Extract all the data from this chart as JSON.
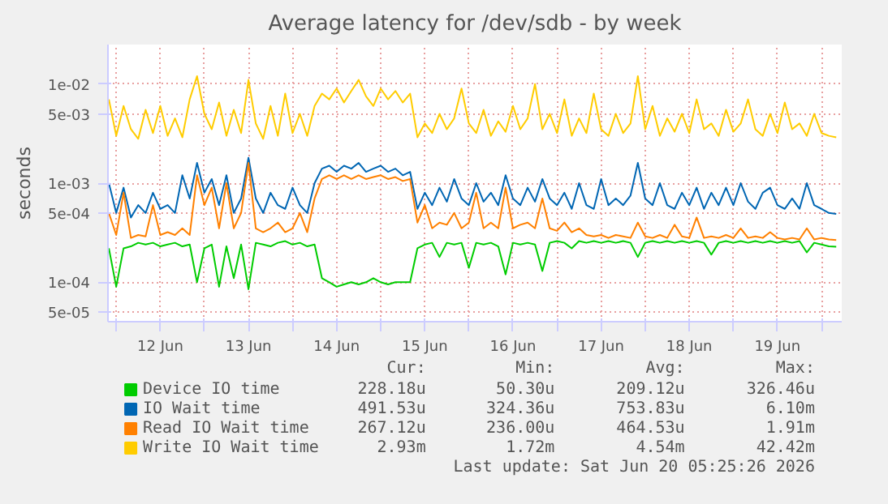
{
  "chart_data": {
    "type": "line",
    "title": "Average latency for /dev/sdb - by week",
    "ylabel": "seconds",
    "log": "y",
    "grid": true,
    "legend": "bottom",
    "marker": "none",
    "line_style": "solid",
    "xlim": [
      "2026-06-11T21:45",
      "2026-06-20T05:30"
    ],
    "xticks": [
      {
        "value": "2026-06-12T00:00",
        "label": null
      },
      {
        "value": "2026-06-12T12:00",
        "label": "12 Jun"
      },
      {
        "value": "2026-06-13T00:00",
        "label": null
      },
      {
        "value": "2026-06-13T12:00",
        "label": "13 Jun"
      },
      {
        "value": "2026-06-14T00:00",
        "label": null
      },
      {
        "value": "2026-06-14T12:00",
        "label": "14 Jun"
      },
      {
        "value": "2026-06-15T00:00",
        "label": null
      },
      {
        "value": "2026-06-15T12:00",
        "label": "15 Jun"
      },
      {
        "value": "2026-06-16T00:00",
        "label": null
      },
      {
        "value": "2026-06-16T12:00",
        "label": "16 Jun"
      },
      {
        "value": "2026-06-17T00:00",
        "label": null
      },
      {
        "value": "2026-06-17T12:00",
        "label": "17 Jun"
      },
      {
        "value": "2026-06-18T00:00",
        "label": null
      },
      {
        "value": "2026-06-18T12:00",
        "label": "18 Jun"
      },
      {
        "value": "2026-06-19T00:00",
        "label": null
      },
      {
        "value": "2026-06-19T12:00",
        "label": "19 Jun"
      },
      {
        "value": "2026-06-20T00:00",
        "label": null
      }
    ],
    "ylim": [
      4e-05,
      0.025
    ],
    "yticks": [
      {
        "value": 5e-05,
        "label": "5e-05"
      },
      {
        "value": 0.0001,
        "label": "1e-04"
      },
      {
        "value": 0.0005,
        "label": "5e-04"
      },
      {
        "value": 0.001,
        "label": "1e-03"
      },
      {
        "value": 0.005,
        "label": "5e-03"
      },
      {
        "value": 0.01,
        "label": "1e-02"
      }
    ],
    "x": [
      "2026-06-11T22:00",
      "2026-06-12T00:00",
      "2026-06-12T02:00",
      "2026-06-12T04:00",
      "2026-06-12T06:00",
      "2026-06-12T08:00",
      "2026-06-12T10:00",
      "2026-06-12T12:00",
      "2026-06-12T14:00",
      "2026-06-12T16:00",
      "2026-06-12T18:00",
      "2026-06-12T20:00",
      "2026-06-12T22:00",
      "2026-06-13T00:00",
      "2026-06-13T02:00",
      "2026-06-13T04:00",
      "2026-06-13T06:00",
      "2026-06-13T08:00",
      "2026-06-13T10:00",
      "2026-06-13T12:00",
      "2026-06-13T14:00",
      "2026-06-13T16:00",
      "2026-06-13T18:00",
      "2026-06-13T20:00",
      "2026-06-13T22:00",
      "2026-06-14T00:00",
      "2026-06-14T02:00",
      "2026-06-14T04:00",
      "2026-06-14T06:00",
      "2026-06-14T08:00",
      "2026-06-14T10:00",
      "2026-06-14T12:00",
      "2026-06-14T14:00",
      "2026-06-14T16:00",
      "2026-06-14T18:00",
      "2026-06-14T20:00",
      "2026-06-14T22:00",
      "2026-06-15T00:00",
      "2026-06-15T02:00",
      "2026-06-15T04:00",
      "2026-06-15T06:00",
      "2026-06-15T08:00",
      "2026-06-15T10:00",
      "2026-06-15T12:00",
      "2026-06-15T14:00",
      "2026-06-15T16:00",
      "2026-06-15T18:00",
      "2026-06-15T20:00",
      "2026-06-15T22:00",
      "2026-06-16T00:00",
      "2026-06-16T02:00",
      "2026-06-16T04:00",
      "2026-06-16T06:00",
      "2026-06-16T08:00",
      "2026-06-16T10:00",
      "2026-06-16T12:00",
      "2026-06-16T14:00",
      "2026-06-16T16:00",
      "2026-06-16T18:00",
      "2026-06-16T20:00",
      "2026-06-16T22:00",
      "2026-06-17T00:00",
      "2026-06-17T02:00",
      "2026-06-17T04:00",
      "2026-06-17T06:00",
      "2026-06-17T08:00",
      "2026-06-17T10:00",
      "2026-06-17T12:00",
      "2026-06-17T14:00",
      "2026-06-17T16:00",
      "2026-06-17T18:00",
      "2026-06-17T20:00",
      "2026-06-17T22:00",
      "2026-06-18T00:00",
      "2026-06-18T02:00",
      "2026-06-18T04:00",
      "2026-06-18T06:00",
      "2026-06-18T08:00",
      "2026-06-18T10:00",
      "2026-06-18T12:00",
      "2026-06-18T14:00",
      "2026-06-18T16:00",
      "2026-06-18T18:00",
      "2026-06-18T20:00",
      "2026-06-18T22:00",
      "2026-06-19T00:00",
      "2026-06-19T02:00",
      "2026-06-19T04:00",
      "2026-06-19T06:00",
      "2026-06-19T08:00",
      "2026-06-19T10:00",
      "2026-06-19T12:00",
      "2026-06-19T14:00",
      "2026-06-19T16:00",
      "2026-06-19T18:00",
      "2026-06-19T20:00",
      "2026-06-19T22:00",
      "2026-06-20T00:00",
      "2026-06-20T02:00",
      "2026-06-20T04:00"
    ],
    "series": [
      {
        "name": "Device IO time",
        "color": "#00cc00",
        "values": [
          0.00022,
          9e-05,
          0.00022,
          0.00023,
          0.00025,
          0.00024,
          0.00025,
          0.00023,
          0.00024,
          0.00025,
          0.00023,
          0.00024,
          0.0001,
          0.00022,
          0.00024,
          9e-05,
          0.00023,
          0.00011,
          0.00024,
          8.5e-05,
          0.00025,
          0.00024,
          0.00023,
          0.00025,
          0.00026,
          0.00024,
          0.00025,
          0.00023,
          0.00024,
          0.00011,
          0.0001,
          9e-05,
          9.5e-05,
          0.0001,
          9.5e-05,
          0.0001,
          0.00011,
          0.0001,
          9.5e-05,
          0.0001,
          0.0001,
          0.0001,
          0.00022,
          0.00024,
          0.00025,
          0.00018,
          0.00025,
          0.00024,
          0.00025,
          0.00014,
          0.00025,
          0.00024,
          0.00025,
          0.00023,
          0.00012,
          0.00025,
          0.00024,
          0.00025,
          0.00024,
          0.00013,
          0.00025,
          0.00026,
          0.00025,
          0.00022,
          0.00026,
          0.00025,
          0.00026,
          0.00025,
          0.00026,
          0.00025,
          0.00026,
          0.00025,
          0.00018,
          0.00025,
          0.00026,
          0.00025,
          0.00026,
          0.00025,
          0.00026,
          0.00025,
          0.00026,
          0.00025,
          0.00019,
          0.00025,
          0.00026,
          0.00025,
          0.00026,
          0.00025,
          0.00026,
          0.00025,
          0.00026,
          0.00025,
          0.00026,
          0.00025,
          0.00026,
          0.0002,
          0.00025,
          0.00024,
          0.00023,
          0.000228
        ]
      },
      {
        "name": "IO Wait time",
        "color": "#0066b3",
        "values": [
          0.001,
          0.0005,
          0.0009,
          0.00045,
          0.0006,
          0.0005,
          0.0008,
          0.00055,
          0.0006,
          0.0005,
          0.0012,
          0.0007,
          0.0016,
          0.0008,
          0.0011,
          0.0006,
          0.0012,
          0.0005,
          0.0007,
          0.0018,
          0.0007,
          0.0005,
          0.0008,
          0.0006,
          0.00055,
          0.0009,
          0.0006,
          0.0005,
          0.001,
          0.0014,
          0.0015,
          0.0013,
          0.0015,
          0.0014,
          0.0016,
          0.0013,
          0.0014,
          0.0015,
          0.0013,
          0.0014,
          0.0012,
          0.0013,
          0.00055,
          0.0008,
          0.0006,
          0.0009,
          0.00065,
          0.0011,
          0.0007,
          0.0006,
          0.001,
          0.00065,
          0.0008,
          0.0006,
          0.0012,
          0.0007,
          0.0006,
          0.0009,
          0.00065,
          0.0011,
          0.0007,
          0.0006,
          0.0008,
          0.00055,
          0.001,
          0.0006,
          0.00055,
          0.0011,
          0.0006,
          0.0007,
          0.0006,
          0.00075,
          0.0016,
          0.0007,
          0.0006,
          0.001,
          0.0006,
          0.00055,
          0.0008,
          0.0006,
          0.0009,
          0.00055,
          0.0008,
          0.0006,
          0.0009,
          0.0006,
          0.001,
          0.00065,
          0.00055,
          0.0008,
          0.0009,
          0.0006,
          0.00055,
          0.0007,
          0.00055,
          0.001,
          0.0006,
          0.00055,
          0.0005,
          0.00049
        ]
      },
      {
        "name": "Read IO Wait time",
        "color": "#ff8000",
        "values": [
          0.0005,
          0.0003,
          0.0008,
          0.00028,
          0.0003,
          0.00029,
          0.0006,
          0.0003,
          0.00032,
          0.0003,
          0.00035,
          0.0003,
          0.0012,
          0.0006,
          0.0009,
          0.00035,
          0.001,
          0.00035,
          0.0005,
          0.0016,
          0.00035,
          0.00032,
          0.00035,
          0.0004,
          0.00032,
          0.00035,
          0.0005,
          0.00032,
          0.0007,
          0.0011,
          0.0012,
          0.0011,
          0.0012,
          0.0011,
          0.0012,
          0.0011,
          0.00115,
          0.0012,
          0.0011,
          0.00115,
          0.00105,
          0.0011,
          0.0004,
          0.0006,
          0.00035,
          0.0004,
          0.00038,
          0.0005,
          0.00035,
          0.0004,
          0.0008,
          0.00035,
          0.0004,
          0.00035,
          0.0009,
          0.00035,
          0.00038,
          0.0004,
          0.00035,
          0.0007,
          0.00035,
          0.00033,
          0.0004,
          0.00032,
          0.00035,
          0.0003,
          0.00029,
          0.0003,
          0.00028,
          0.0003,
          0.00029,
          0.00028,
          0.0004,
          0.00029,
          0.00028,
          0.0003,
          0.00028,
          0.00038,
          0.00029,
          0.00028,
          0.00045,
          0.00028,
          0.00029,
          0.00028,
          0.0003,
          0.00028,
          0.00035,
          0.00028,
          0.00029,
          0.00028,
          0.00032,
          0.00028,
          0.00027,
          0.00028,
          0.00027,
          0.00035,
          0.00027,
          0.00028,
          0.00027,
          0.000267
        ]
      },
      {
        "name": "Write IO Wait time",
        "color": "#ffcc00",
        "values": [
          0.007,
          0.003,
          0.006,
          0.0035,
          0.0028,
          0.0055,
          0.0032,
          0.006,
          0.003,
          0.0045,
          0.0029,
          0.007,
          0.012,
          0.005,
          0.0035,
          0.0065,
          0.003,
          0.0055,
          0.0032,
          0.011,
          0.004,
          0.0028,
          0.006,
          0.003,
          0.008,
          0.0032,
          0.005,
          0.003,
          0.006,
          0.008,
          0.007,
          0.009,
          0.0065,
          0.0085,
          0.011,
          0.0075,
          0.006,
          0.009,
          0.007,
          0.0085,
          0.0065,
          0.008,
          0.0029,
          0.004,
          0.0032,
          0.005,
          0.0035,
          0.0045,
          0.009,
          0.004,
          0.0032,
          0.0055,
          0.003,
          0.0042,
          0.0033,
          0.006,
          0.0035,
          0.0045,
          0.01,
          0.0035,
          0.005,
          0.0032,
          0.007,
          0.003,
          0.0045,
          0.0032,
          0.008,
          0.0035,
          0.003,
          0.005,
          0.0032,
          0.004,
          0.012,
          0.0035,
          0.006,
          0.003,
          0.0045,
          0.0033,
          0.005,
          0.0032,
          0.007,
          0.0035,
          0.004,
          0.003,
          0.0055,
          0.0033,
          0.004,
          0.007,
          0.0035,
          0.003,
          0.005,
          0.0032,
          0.0065,
          0.0035,
          0.004,
          0.003,
          0.005,
          0.0032,
          0.003,
          0.0029
        ]
      }
    ],
    "annotations": [
      "Cur:",
      "Min:",
      "Avg:",
      "Max:",
      "228.18u",
      "50.30u",
      "209.12u",
      "326.46u",
      "491.53u",
      "324.36u",
      "753.83u",
      "6.10m",
      "267.12u",
      "236.00u",
      "464.53u",
      "1.91m",
      "2.93m",
      "1.72m",
      "4.54m",
      "42.42m",
      "Last update: Sat Jun 20 05:25:26 2026"
    ]
  }
}
